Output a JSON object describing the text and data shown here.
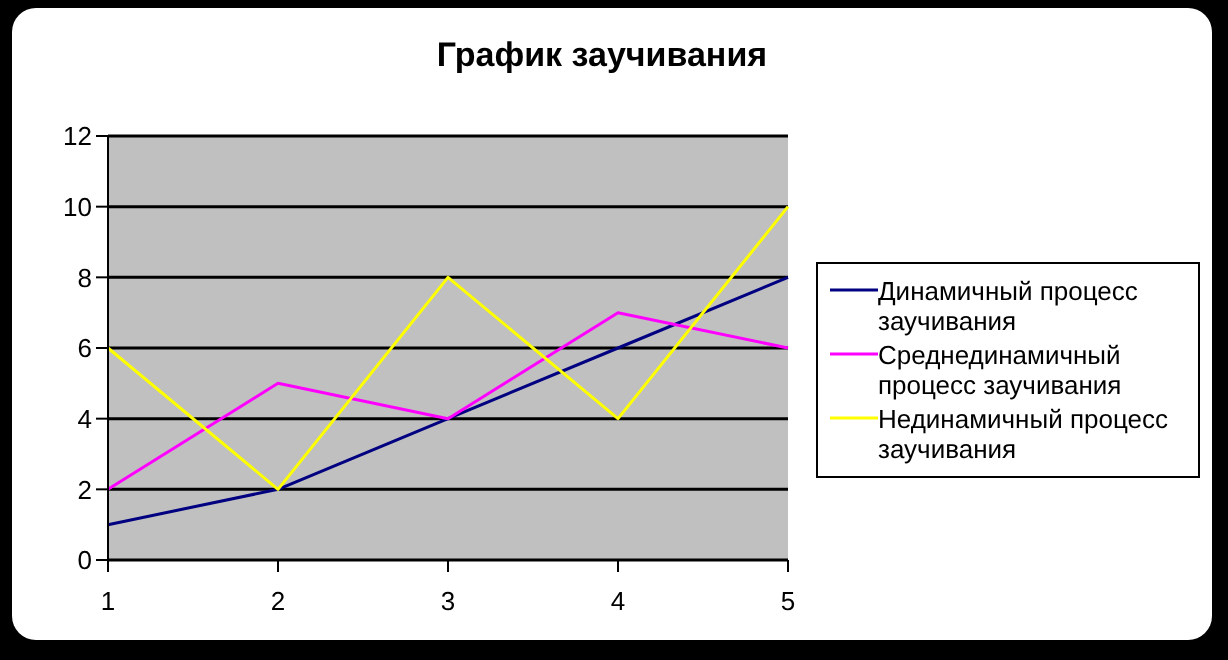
{
  "chart_data": {
    "type": "line",
    "title": "График заучивания",
    "categories": [
      "1",
      "2",
      "3",
      "4",
      "5"
    ],
    "series": [
      {
        "name": "Динамичный процесс заучивания",
        "color": "#000080",
        "values": [
          1,
          2,
          4,
          6,
          8
        ]
      },
      {
        "name": "Среднединамичный процесс заучивания",
        "color": "#ff00ff",
        "values": [
          2,
          5,
          4,
          7,
          6
        ]
      },
      {
        "name": "Нединамичный процесс заучивания",
        "color": "#ffff00",
        "values": [
          6,
          2,
          8,
          4,
          10
        ]
      }
    ],
    "ylim": [
      0,
      12
    ],
    "yticks": [
      0,
      2,
      4,
      6,
      8,
      10,
      12
    ],
    "grid": "y",
    "legend": "right",
    "marker": "none",
    "line_style": "solid"
  }
}
